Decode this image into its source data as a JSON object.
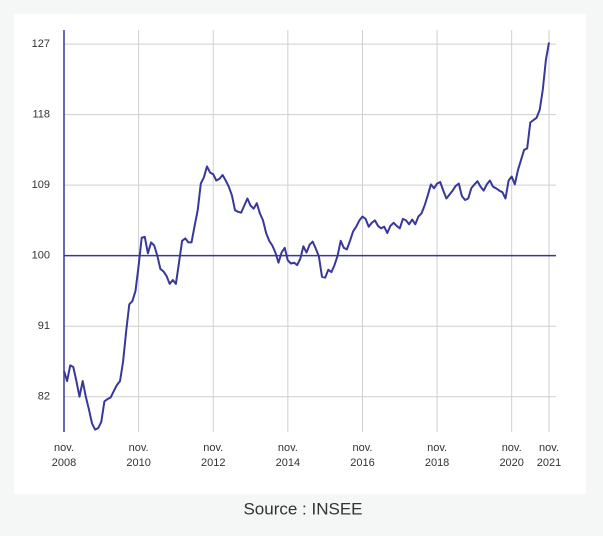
{
  "chart_data": {
    "type": "line",
    "x": [
      "2008-11",
      "2008-12",
      "2009-01",
      "2009-02",
      "2009-03",
      "2009-04",
      "2009-05",
      "2009-06",
      "2009-07",
      "2009-08",
      "2009-09",
      "2009-10",
      "2009-11",
      "2009-12",
      "2010-01",
      "2010-02",
      "2010-03",
      "2010-04",
      "2010-05",
      "2010-06",
      "2010-07",
      "2010-08",
      "2010-09",
      "2010-10",
      "2010-11",
      "2010-12",
      "2011-01",
      "2011-02",
      "2011-03",
      "2011-04",
      "2011-05",
      "2011-06",
      "2011-07",
      "2011-08",
      "2011-09",
      "2011-10",
      "2011-11",
      "2011-12",
      "2012-01",
      "2012-02",
      "2012-03",
      "2012-04",
      "2012-05",
      "2012-06",
      "2012-07",
      "2012-08",
      "2012-09",
      "2012-10",
      "2012-11",
      "2012-12",
      "2013-01",
      "2013-02",
      "2013-03",
      "2013-04",
      "2013-05",
      "2013-06",
      "2013-07",
      "2013-08",
      "2013-09",
      "2013-10",
      "2013-11",
      "2013-12",
      "2014-01",
      "2014-02",
      "2014-03",
      "2014-04",
      "2014-05",
      "2014-06",
      "2014-07",
      "2014-08",
      "2014-09",
      "2014-10",
      "2014-11",
      "2014-12",
      "2015-01",
      "2015-02",
      "2015-03",
      "2015-04",
      "2015-05",
      "2015-06",
      "2015-07",
      "2015-08",
      "2015-09",
      "2015-10",
      "2015-11",
      "2015-12",
      "2016-01",
      "2016-02",
      "2016-03",
      "2016-04",
      "2016-05",
      "2016-06",
      "2016-07",
      "2016-08",
      "2016-09",
      "2016-10",
      "2016-11",
      "2016-12",
      "2017-01",
      "2017-02",
      "2017-03",
      "2017-04",
      "2017-05",
      "2017-06",
      "2017-07",
      "2017-08",
      "2017-09",
      "2017-10",
      "2017-11",
      "2017-12",
      "2018-01",
      "2018-02",
      "2018-03",
      "2018-04",
      "2018-05",
      "2018-06",
      "2018-07",
      "2018-08",
      "2018-09",
      "2018-10",
      "2018-11",
      "2018-12",
      "2019-01",
      "2019-02",
      "2019-03",
      "2019-04",
      "2019-05",
      "2019-06",
      "2019-07",
      "2019-08",
      "2019-09",
      "2019-10",
      "2019-11",
      "2019-12",
      "2020-01",
      "2020-02",
      "2020-03",
      "2020-04",
      "2020-05",
      "2020-06",
      "2020-07",
      "2020-08",
      "2020-09",
      "2020-10",
      "2020-11",
      "2020-12",
      "2021-01",
      "2021-02",
      "2021-03",
      "2021-04",
      "2021-05",
      "2021-06",
      "2021-07",
      "2021-08",
      "2021-09",
      "2021-10",
      "2021-11"
    ],
    "values": [
      85.3,
      84,
      86,
      85.8,
      84,
      82,
      84,
      82,
      80.4,
      78.6,
      77.8,
      78,
      78.8,
      81.4,
      81.7,
      81.9,
      82.7,
      83.5,
      84,
      86.5,
      90.4,
      93.8,
      94.2,
      95.5,
      98.7,
      102.3,
      102.4,
      100.3,
      101.7,
      101.3,
      100,
      98.3,
      98,
      97.4,
      96.4,
      96.9,
      96.4,
      99.1,
      101.9,
      102.2,
      101.7,
      101.7,
      103.8,
      105.8,
      109.2,
      110,
      111.4,
      110.6,
      110.4,
      109.6,
      109.8,
      110.3,
      109.6,
      108.8,
      107.7,
      105.8,
      105.6,
      105.5,
      106.4,
      107.3,
      106.4,
      106,
      106.7,
      105.4,
      104.5,
      102.9,
      101.9,
      101.3,
      100.4,
      99.1,
      100.4,
      101,
      99.4,
      99,
      99.1,
      98.8,
      99.6,
      101.2,
      100.4,
      101.4,
      101.8,
      100.9,
      99.9,
      97.3,
      97.2,
      98.2,
      97.9,
      98.8,
      100,
      101.9,
      101,
      100.8,
      101.9,
      103.1,
      103.7,
      104.5,
      105,
      104.7,
      103.7,
      104.2,
      104.5,
      103.8,
      103.5,
      103.7,
      102.9,
      103.8,
      104.2,
      103.8,
      103.5,
      104.7,
      104.5,
      104,
      104.6,
      104,
      105,
      105.4,
      106.4,
      107.7,
      109.1,
      108.6,
      109.2,
      109.4,
      108.3,
      107.3,
      107.8,
      108.3,
      108.9,
      109.2,
      107.6,
      107.1,
      107.3,
      108.6,
      109.1,
      109.5,
      108.8,
      108.3,
      109.1,
      109.6,
      108.8,
      108.6,
      108.3,
      108.1,
      107.3,
      109.6,
      110.1,
      109.1,
      110.9,
      112.2,
      113.5,
      113.7,
      117,
      117.3,
      117.6,
      118.6,
      121.2,
      125,
      127.2
    ],
    "color": "#38389a",
    "reference_value": 100,
    "ylim": [
      77.5,
      128.8
    ],
    "yticks": [
      82,
      91,
      100,
      109,
      118,
      127
    ],
    "xticks": [
      {
        "value": "2008-11",
        "label": "nov. 2008"
      },
      {
        "value": "2010-11",
        "label": "nov. 2010"
      },
      {
        "value": "2012-11",
        "label": "nov. 2012"
      },
      {
        "value": "2014-11",
        "label": "nov. 2014"
      },
      {
        "value": "2016-11",
        "label": "nov. 2016"
      },
      {
        "value": "2018-11",
        "label": "nov. 2018"
      },
      {
        "value": "2020-11",
        "label": "nov. 2020"
      },
      {
        "value": "2021-11",
        "label": "nov. 2021"
      }
    ],
    "grid": true,
    "source": "Source : INSEE"
  }
}
